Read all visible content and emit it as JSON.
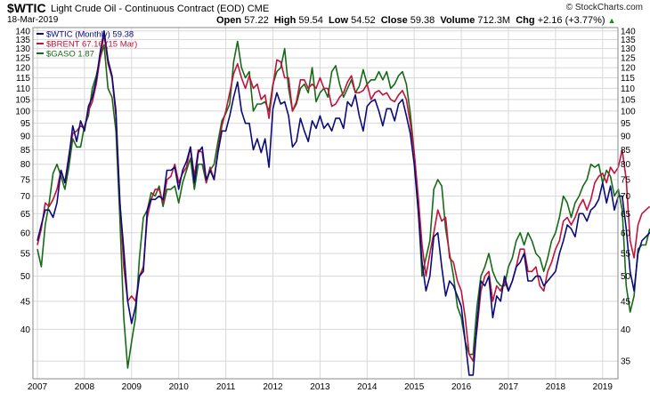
{
  "header": {
    "symbol": "$WTIC",
    "description": "Light Crude Oil - Continuous Contract (EOD)",
    "exchange": "CME",
    "date": "18-Mar-2019",
    "brand": "© StockCharts.com",
    "quote": {
      "open_label": "Open",
      "open": "57.22",
      "high_label": "High",
      "high": "59.54",
      "low_label": "Low",
      "low": "54.52",
      "close_label": "Close",
      "close": "59.38",
      "volume_label": "Volume",
      "volume": "712.3M",
      "chg_label": "Chg",
      "chg": "+2.16 (+3.77%)",
      "chg_arrow": "▲"
    }
  },
  "chart_data": {
    "type": "line",
    "y_scale": "log",
    "ylim": [
      32.5,
      142
    ],
    "left_ticks": [
      140,
      135,
      130,
      125,
      120,
      115,
      110,
      105,
      100,
      95,
      90,
      85,
      80,
      75,
      70,
      65,
      60,
      55,
      50,
      45,
      40
    ],
    "right_ticks": [
      140,
      135,
      130,
      125,
      120,
      115,
      110,
      105,
      100,
      95,
      90,
      85,
      80,
      75,
      70,
      65,
      60,
      55,
      50,
      45,
      40,
      35
    ],
    "x_ticks": [
      "2007",
      "2008",
      "2009",
      "2010",
      "2011",
      "2012",
      "2013",
      "2014",
      "2015",
      "2016",
      "2017",
      "2018",
      "2019"
    ],
    "x_start": "2007-01",
    "grid": true,
    "legend_position": "top-left",
    "legend": [
      {
        "key": "wtic",
        "label": "$WTIC (Monthly) 59.38"
      },
      {
        "key": "brent",
        "label": "$BRENT 67.16 (15 Mar)"
      },
      {
        "key": "gaso",
        "label": "$GASO 1.87"
      }
    ],
    "series": [
      {
        "key": "wtic",
        "name": "$WTIC (Monthly)",
        "color": "#0b0b7a",
        "values": [
          58,
          62,
          66,
          66,
          64,
          68,
          78,
          74,
          82,
          94,
          88,
          96,
          92,
          102,
          106,
          114,
          128,
          140,
          124,
          116,
          100,
          68,
          56,
          45,
          41,
          44,
          50,
          51,
          66,
          69,
          69,
          70,
          69,
          78,
          78,
          79,
          72,
          78,
          81,
          86,
          74,
          84,
          86,
          75,
          78,
          75,
          84,
          92,
          92,
          98,
          106,
          113,
          100,
          95,
          95,
          85,
          89,
          84,
          89,
          79,
          101,
          108,
          103,
          104,
          98,
          86,
          88,
          97,
          92,
          88,
          96,
          93,
          98,
          93,
          95,
          92,
          97,
          97,
          93,
          104,
          102,
          107,
          98,
          92,
          102,
          104,
          105,
          100,
          94,
          101,
          101,
          96,
          103,
          105,
          98,
          91,
          80,
          66,
          53,
          47,
          50,
          59,
          60,
          52,
          46,
          49,
          48,
          46,
          44,
          38,
          33,
          33,
          41,
          49,
          48,
          50,
          42,
          46,
          45,
          50,
          47,
          49,
          52,
          53,
          55,
          49,
          49,
          50,
          50,
          48,
          49,
          50,
          51,
          55,
          58,
          62,
          61,
          59,
          65,
          65,
          63,
          66,
          67,
          69,
          74,
          68,
          73,
          66,
          70,
          70,
          61,
          51,
          47,
          55,
          58,
          59,
          60,
          60
        ]
      },
      {
        "key": "brent",
        "name": "$BRENT",
        "color": "#c0143c",
        "values": [
          57,
          61,
          68,
          67,
          69,
          72,
          78,
          74,
          83,
          91,
          92,
          94,
          93,
          100,
          104,
          112,
          125,
          138,
          122,
          115,
          98,
          69,
          52,
          45,
          46,
          45,
          50,
          52,
          64,
          69,
          72,
          72,
          68,
          75,
          76,
          80,
          74,
          77,
          79,
          86,
          76,
          85,
          84,
          74,
          79,
          75,
          85,
          94,
          100,
          108,
          117,
          122,
          115,
          110,
          116,
          110,
          112,
          105,
          107,
          97,
          111,
          124,
          123,
          115,
          115,
          100,
          104,
          114,
          114,
          110,
          112,
          110,
          115,
          110,
          110,
          102,
          103,
          106,
          108,
          113,
          116,
          108,
          108,
          109,
          112,
          105,
          108,
          109,
          107,
          108,
          105,
          104,
          107,
          109,
          105,
          95,
          84,
          70,
          57,
          50,
          55,
          60,
          66,
          63,
          64,
          54,
          53,
          49,
          47,
          42,
          36,
          35,
          40,
          47,
          50,
          51,
          45,
          48,
          47,
          49,
          47,
          49,
          52,
          56,
          56,
          51,
          51,
          52,
          48,
          47,
          51,
          53,
          56,
          58,
          63,
          64,
          62,
          64,
          67,
          69,
          66,
          69,
          74,
          76,
          77,
          74,
          79,
          77,
          79,
          85,
          75,
          58,
          54,
          62,
          65,
          66,
          67
        ]
      },
      {
        "key": "gaso",
        "name": "$GASO",
        "color": "#166b16",
        "values": [
          56,
          52,
          62,
          68,
          77,
          80,
          76,
          72,
          79,
          89,
          86,
          86,
          94,
          98,
          110,
          116,
          125,
          132,
          110,
          106,
          92,
          64,
          42,
          34,
          38,
          42,
          54,
          64,
          66,
          71,
          70,
          73,
          67,
          72,
          72,
          73,
          68,
          74,
          78,
          82,
          72,
          80,
          80,
          74,
          78,
          80,
          88,
          96,
          99,
          103,
          123,
          134,
          120,
          115,
          118,
          100,
          103,
          103,
          104,
          100,
          112,
          118,
          120,
          130,
          110,
          100,
          103,
          110,
          112,
          108,
          120,
          104,
          108,
          110,
          106,
          118,
          121,
          112,
          106,
          110,
          114,
          108,
          111,
          119,
          112,
          114,
          114,
          118,
          114,
          118,
          110,
          112,
          116,
          118,
          112,
          99,
          84,
          67,
          50,
          54,
          58,
          72,
          75,
          73,
          61,
          55,
          50,
          44,
          42,
          38,
          36,
          36,
          44,
          50,
          52,
          55,
          51,
          49,
          48,
          48,
          52,
          54,
          58,
          60,
          57,
          60,
          58,
          55,
          54,
          51,
          54,
          58,
          60,
          64,
          70,
          68,
          64,
          68,
          70,
          73,
          75,
          80,
          79,
          80,
          74,
          78,
          76,
          70,
          72,
          66,
          48,
          43,
          46,
          56,
          57,
          57,
          61
        ]
      }
    ]
  }
}
